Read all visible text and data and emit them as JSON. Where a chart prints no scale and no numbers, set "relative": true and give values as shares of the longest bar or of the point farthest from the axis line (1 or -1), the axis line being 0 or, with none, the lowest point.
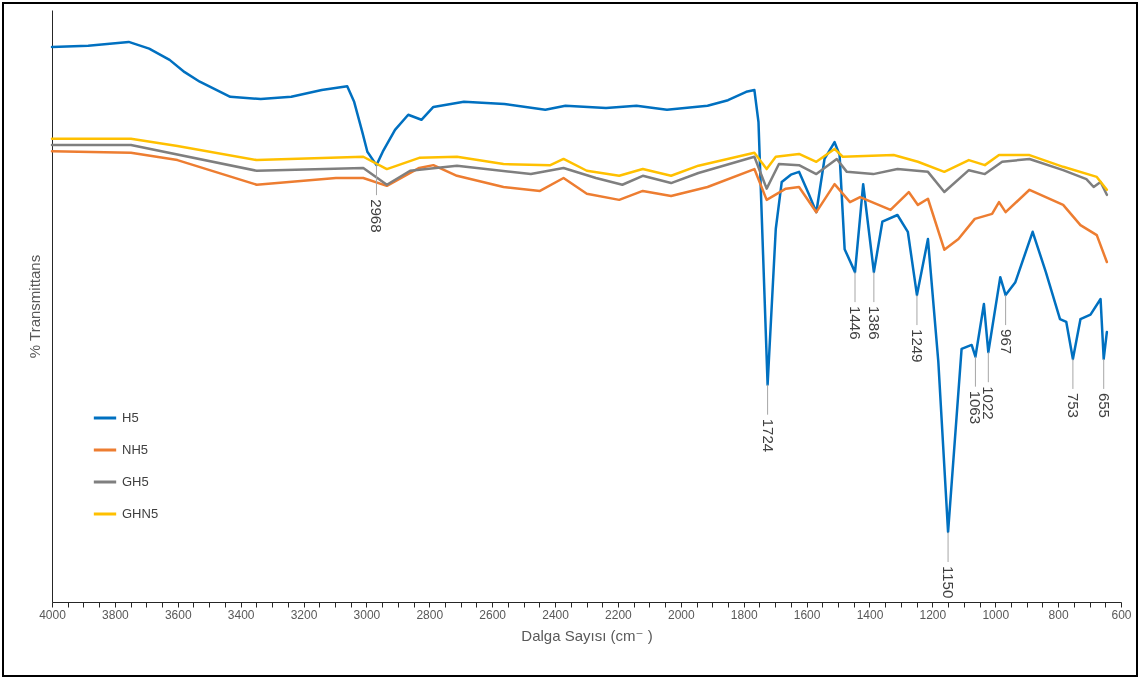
{
  "chart_data": {
    "type": "line",
    "xlabel": "Dalga Sayısı (cm⁻ )",
    "ylabel": "% Transmittans",
    "relative": true,
    "grid": false,
    "legend": "left",
    "marker": "none",
    "line_style": "solid",
    "xlim": [
      4000,
      600
    ],
    "xticks": [
      4000,
      {
        "value": 3950,
        "label": null
      },
      {
        "value": 3900,
        "label": null
      },
      {
        "value": 3850,
        "label": null
      },
      3800,
      {
        "value": 3750,
        "label": null
      },
      {
        "value": 3700,
        "label": null
      },
      {
        "value": 3650,
        "label": null
      },
      3600,
      {
        "value": 3550,
        "label": null
      },
      {
        "value": 3500,
        "label": null
      },
      {
        "value": 3450,
        "label": null
      },
      3400,
      {
        "value": 3350,
        "label": null
      },
      {
        "value": 3300,
        "label": null
      },
      {
        "value": 3250,
        "label": null
      },
      3200,
      {
        "value": 3150,
        "label": null
      },
      {
        "value": 3100,
        "label": null
      },
      {
        "value": 3050,
        "label": null
      },
      3000,
      {
        "value": 2950,
        "label": null
      },
      {
        "value": 2900,
        "label": null
      },
      {
        "value": 2850,
        "label": null
      },
      2800,
      {
        "value": 2750,
        "label": null
      },
      {
        "value": 2700,
        "label": null
      },
      {
        "value": 2650,
        "label": null
      },
      2600,
      {
        "value": 2550,
        "label": null
      },
      {
        "value": 2500,
        "label": null
      },
      {
        "value": 2450,
        "label": null
      },
      2400,
      {
        "value": 2350,
        "label": null
      },
      {
        "value": 2300,
        "label": null
      },
      {
        "value": 2250,
        "label": null
      },
      2200,
      {
        "value": 2150,
        "label": null
      },
      {
        "value": 2100,
        "label": null
      },
      {
        "value": 2050,
        "label": null
      },
      2000,
      {
        "value": 1950,
        "label": null
      },
      {
        "value": 1900,
        "label": null
      },
      {
        "value": 1850,
        "label": null
      },
      1800,
      {
        "value": 1750,
        "label": null
      },
      {
        "value": 1700,
        "label": null
      },
      {
        "value": 1650,
        "label": null
      },
      1600,
      {
        "value": 1550,
        "label": null
      },
      {
        "value": 1500,
        "label": null
      },
      {
        "value": 1450,
        "label": null
      },
      1400,
      {
        "value": 1350,
        "label": null
      },
      {
        "value": 1300,
        "label": null
      },
      {
        "value": 1250,
        "label": null
      },
      1200,
      {
        "value": 1150,
        "label": null
      },
      {
        "value": 1100,
        "label": null
      },
      {
        "value": 1050,
        "label": null
      },
      1000,
      {
        "value": 950,
        "label": null
      },
      {
        "value": 900,
        "label": null
      },
      {
        "value": 850,
        "label": null
      },
      800,
      {
        "value": 750,
        "label": null
      },
      {
        "value": 700,
        "label": null
      },
      {
        "value": 650,
        "label": null
      },
      600
    ],
    "series": [
      {
        "name": "H5",
        "color": "#0070c0",
        "x": [
          4000,
          3885,
          3756,
          3691,
          3626,
          3578,
          3530,
          3433,
          3336,
          3239,
          3142,
          3061,
          3039,
          3013,
          2997,
          2968,
          2948,
          2909,
          2867,
          2825,
          2787,
          2690,
          2561,
          2431,
          2367,
          2238,
          2141,
          2044,
          1915,
          1850,
          1792,
          1766,
          1753,
          1724,
          1698,
          1679,
          1650,
          1624,
          1592,
          1569,
          1543,
          1511,
          1495,
          1479,
          1446,
          1420,
          1386,
          1359,
          1311,
          1278,
          1249,
          1214,
          1181,
          1150,
          1107,
          1075,
          1063,
          1036,
          1022,
          984,
          967,
          936,
          881,
          839,
          794,
          774,
          753,
          729,
          697,
          665,
          655,
          645
        ],
        "values": [
          0.991,
          0.993,
          1.0,
          0.988,
          0.968,
          0.946,
          0.929,
          0.902,
          0.898,
          0.902,
          0.914,
          0.921,
          0.893,
          0.839,
          0.804,
          0.78,
          0.804,
          0.843,
          0.87,
          0.861,
          0.884,
          0.893,
          0.889,
          0.879,
          0.886,
          0.882,
          0.886,
          0.879,
          0.886,
          0.896,
          0.911,
          0.914,
          0.857,
          0.388,
          0.666,
          0.75,
          0.763,
          0.768,
          0.727,
          0.696,
          0.791,
          0.821,
          0.798,
          0.63,
          0.589,
          0.746,
          0.589,
          0.679,
          0.691,
          0.661,
          0.548,
          0.648,
          0.429,
          0.125,
          0.452,
          0.459,
          0.438,
          0.532,
          0.446,
          0.58,
          0.548,
          0.571,
          0.661,
          0.589,
          0.505,
          0.5,
          0.434,
          0.505,
          0.513,
          0.541,
          0.434,
          0.482
        ]
      },
      {
        "name": "NH5",
        "color": "#ed7d31",
        "x": [
          4000,
          3749,
          3601,
          3349,
          3097,
          3010,
          2935,
          2832,
          2787,
          2712,
          2564,
          2448,
          2373,
          2299,
          2196,
          2121,
          2031,
          1915,
          1766,
          1727,
          1666,
          1624,
          1569,
          1511,
          1462,
          1430,
          1333,
          1275,
          1246,
          1214,
          1162,
          1117,
          1065,
          1010,
          988,
          967,
          891,
          784,
          729,
          677,
          645
        ],
        "values": [
          0.805,
          0.802,
          0.789,
          0.745,
          0.757,
          0.757,
          0.743,
          0.775,
          0.78,
          0.761,
          0.741,
          0.734,
          0.757,
          0.729,
          0.718,
          0.734,
          0.725,
          0.741,
          0.773,
          0.718,
          0.738,
          0.741,
          0.696,
          0.746,
          0.714,
          0.723,
          0.7,
          0.732,
          0.709,
          0.72,
          0.629,
          0.648,
          0.684,
          0.693,
          0.714,
          0.696,
          0.736,
          0.709,
          0.673,
          0.655,
          0.607
        ]
      },
      {
        "name": "GH5",
        "color": "#7f7f7f",
        "x": [
          4000,
          3749,
          3349,
          3010,
          2935,
          2861,
          2712,
          2477,
          2373,
          2270,
          2186,
          2121,
          2031,
          1944,
          1766,
          1727,
          1688,
          1624,
          1569,
          1504,
          1472,
          1388,
          1311,
          1214,
          1162,
          1084,
          1033,
          978,
          891,
          784,
          710,
          687,
          665,
          645
        ],
        "values": [
          0.816,
          0.816,
          0.77,
          0.775,
          0.745,
          0.77,
          0.779,
          0.764,
          0.775,
          0.757,
          0.745,
          0.761,
          0.748,
          0.766,
          0.795,
          0.738,
          0.782,
          0.78,
          0.764,
          0.791,
          0.768,
          0.764,
          0.773,
          0.768,
          0.732,
          0.771,
          0.764,
          0.786,
          0.791,
          0.771,
          0.755,
          0.741,
          0.75,
          0.727
        ]
      },
      {
        "name": "GHN5",
        "color": "#ffc000",
        "x": [
          4000,
          3749,
          3601,
          3349,
          3010,
          2935,
          2832,
          2712,
          2564,
          2415,
          2373,
          2299,
          2196,
          2121,
          2031,
          1944,
          1766,
          1727,
          1698,
          1624,
          1569,
          1511,
          1485,
          1323,
          1246,
          1162,
          1084,
          1033,
          988,
          891,
          784,
          677,
          645
        ],
        "values": [
          0.827,
          0.827,
          0.814,
          0.789,
          0.795,
          0.773,
          0.793,
          0.795,
          0.782,
          0.78,
          0.791,
          0.77,
          0.761,
          0.773,
          0.761,
          0.779,
          0.802,
          0.773,
          0.795,
          0.8,
          0.786,
          0.809,
          0.795,
          0.798,
          0.786,
          0.768,
          0.789,
          0.78,
          0.798,
          0.798,
          0.777,
          0.759,
          0.736
        ]
      }
    ],
    "annotations": [
      {
        "text": "2968",
        "x": 2968,
        "y": 0.78
      },
      {
        "text": "1724",
        "x": 1724,
        "y": 0.388
      },
      {
        "text": "1446",
        "x": 1446,
        "y": 0.589
      },
      {
        "text": "1386",
        "x": 1386,
        "y": 0.589
      },
      {
        "text": "1249",
        "x": 1249,
        "y": 0.548
      },
      {
        "text": "1150",
        "x": 1150,
        "y": 0.125
      },
      {
        "text": "1063",
        "x": 1063,
        "y": 0.438
      },
      {
        "text": "1022",
        "x": 1022,
        "y": 0.446
      },
      {
        "text": "967",
        "x": 967,
        "y": 0.548
      },
      {
        "text": "753",
        "x": 753,
        "y": 0.434
      },
      {
        "text": "655",
        "x": 655,
        "y": 0.434
      }
    ]
  }
}
